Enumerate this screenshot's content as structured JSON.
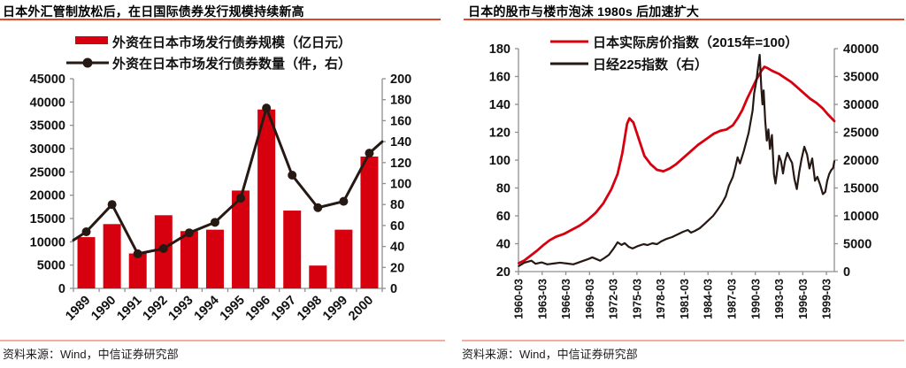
{
  "colors": {
    "red": "#d7000f",
    "dark": "#261812",
    "title_underline": "#e0452a",
    "separator": "#f2aca0",
    "axis": "#8f8f8f"
  },
  "source_label": "资料来源：Wind，中信证券研究部",
  "chart_data": [
    {
      "type": "bar",
      "title": "日本外汇管制放松后，在日国际债券发行规模持续新高",
      "source": "资料来源：Wind，中信证券研究部",
      "categories": [
        "1989",
        "1990",
        "1991",
        "1992",
        "1993",
        "1994",
        "1995",
        "1996",
        "1997",
        "1998",
        "1999",
        "2000"
      ],
      "series": [
        {
          "name": "外资在日本市场发行债券规模（亿日元）",
          "kind": "bar",
          "axis": "left",
          "color": "red",
          "values": [
            11000,
            13800,
            7500,
            15700,
            12300,
            12600,
            21000,
            38400,
            16700,
            4900,
            12600,
            28300
          ]
        },
        {
          "name": "外资在日本市场发行债券数量（件，右）",
          "kind": "line",
          "axis": "right",
          "color": "dark",
          "values": [
            54,
            80,
            33,
            38,
            53,
            63,
            86,
            172,
            108,
            77,
            83,
            129
          ],
          "edge_values": {
            "left": 46,
            "right": 140
          }
        }
      ],
      "axes": {
        "left": {
          "min": 0,
          "max": 45000,
          "step": 5000
        },
        "right": {
          "min": 0,
          "max": 200,
          "step": 20
        }
      },
      "legend_position": "top",
      "grid": false
    },
    {
      "type": "line",
      "title": "日本的股市与楼市泡沫 1980s 后加速扩大",
      "source": "资料来源：Wind，中信证券研究部",
      "x_axis": {
        "min": 1960.25,
        "max": 2000.25,
        "label_interval_years": 3,
        "tick_labels": [
          "1960-03",
          "1963-03",
          "1966-03",
          "1969-03",
          "1972-03",
          "1975-03",
          "1978-03",
          "1981-03",
          "1984-03",
          "1987-03",
          "1990-03",
          "1993-03",
          "1996-03",
          "1999-03"
        ]
      },
      "axes": {
        "left": {
          "min": 20,
          "max": 180,
          "step": 20
        },
        "right": {
          "min": 0,
          "max": 40000,
          "step": 5000
        }
      },
      "series": [
        {
          "name": "日本实际房价指数（2015年=100）",
          "axis": "left",
          "color": "red",
          "width": 2.8,
          "points": [
            [
              1960.3,
              26
            ],
            [
              1961,
              28
            ],
            [
              1961.8,
              31.5
            ],
            [
              1962.6,
              35
            ],
            [
              1963.4,
              39
            ],
            [
              1964.2,
              42.5
            ],
            [
              1965,
              45
            ],
            [
              1966,
              47
            ],
            [
              1967,
              50
            ],
            [
              1968,
              53
            ],
            [
              1969,
              57
            ],
            [
              1970,
              62
            ],
            [
              1971,
              69
            ],
            [
              1972,
              79
            ],
            [
              1972.8,
              90
            ],
            [
              1973.4,
              105
            ],
            [
              1974,
              126
            ],
            [
              1974.3,
              130
            ],
            [
              1974.8,
              127
            ],
            [
              1975.5,
              115
            ],
            [
              1976.2,
              103
            ],
            [
              1977,
              97
            ],
            [
              1977.8,
              93
            ],
            [
              1978.6,
              92
            ],
            [
              1979.4,
              94
            ],
            [
              1980.2,
              97
            ],
            [
              1981,
              101
            ],
            [
              1982,
              106
            ],
            [
              1983,
              111
            ],
            [
              1984,
              115
            ],
            [
              1985,
              119
            ],
            [
              1985.8,
              121
            ],
            [
              1986.6,
              122
            ],
            [
              1987.4,
              125
            ],
            [
              1988,
              130
            ],
            [
              1988.6,
              136
            ],
            [
              1989.2,
              144
            ],
            [
              1989.8,
              151
            ],
            [
              1990.4,
              158
            ],
            [
              1991,
              164
            ],
            [
              1991.4,
              167
            ],
            [
              1991.8,
              166
            ],
            [
              1992.4,
              164
            ],
            [
              1993.2,
              162
            ],
            [
              1994,
              159
            ],
            [
              1994.8,
              156
            ],
            [
              1995.6,
              152
            ],
            [
              1996.4,
              148
            ],
            [
              1997.2,
              144
            ],
            [
              1998,
              141
            ],
            [
              1998.8,
              137
            ],
            [
              1999.4,
              133
            ],
            [
              2000.25,
              128
            ]
          ]
        },
        {
          "name": "日经225指数（右）",
          "axis": "right",
          "color": "dark",
          "width": 2.2,
          "points": [
            [
              1960.3,
              1000
            ],
            [
              1961,
              1600
            ],
            [
              1961.9,
              1950
            ],
            [
              1962.4,
              1400
            ],
            [
              1963.2,
              1650
            ],
            [
              1963.9,
              1300
            ],
            [
              1964.7,
              1450
            ],
            [
              1965.5,
              1600
            ],
            [
              1966.4,
              1450
            ],
            [
              1967.2,
              1300
            ],
            [
              1967.8,
              1600
            ],
            [
              1968.5,
              1950
            ],
            [
              1969.1,
              2250
            ],
            [
              1969.6,
              2550
            ],
            [
              1970.1,
              2250
            ],
            [
              1970.6,
              1950
            ],
            [
              1971.1,
              2400
            ],
            [
              1971.7,
              3000
            ],
            [
              1972.3,
              4150
            ],
            [
              1972.8,
              5250
            ],
            [
              1973.3,
              4780
            ],
            [
              1973.7,
              5100
            ],
            [
              1974.2,
              4450
            ],
            [
              1974.7,
              4150
            ],
            [
              1975.4,
              4600
            ],
            [
              1976.1,
              4920
            ],
            [
              1976.6,
              4760
            ],
            [
              1977.2,
              5080
            ],
            [
              1977.8,
              4920
            ],
            [
              1978.3,
              5400
            ],
            [
              1979,
              5870
            ],
            [
              1979.7,
              6190
            ],
            [
              1980.4,
              6670
            ],
            [
              1981.1,
              7140
            ],
            [
              1981.7,
              7460
            ],
            [
              1982.1,
              6980
            ],
            [
              1982.6,
              7300
            ],
            [
              1983.2,
              7780
            ],
            [
              1983.7,
              8400
            ],
            [
              1984.3,
              9200
            ],
            [
              1984.9,
              10000
            ],
            [
              1985.4,
              10950
            ],
            [
              1986,
              12200
            ],
            [
              1986.5,
              13500
            ],
            [
              1986.9,
              15400
            ],
            [
              1987.4,
              17000
            ],
            [
              1987.7,
              18600
            ],
            [
              1988,
              20500
            ],
            [
              1988.3,
              19400
            ],
            [
              1988.8,
              21700
            ],
            [
              1989.1,
              23300
            ],
            [
              1989.4,
              24900
            ],
            [
              1989.6,
              26500
            ],
            [
              1989.9,
              28900
            ],
            [
              1990.1,
              32000
            ],
            [
              1990.4,
              34400
            ],
            [
              1990.6,
              36800
            ],
            [
              1990.8,
              38900
            ],
            [
              1991,
              33000
            ],
            [
              1991.15,
              30000
            ],
            [
              1991.3,
              32500
            ],
            [
              1991.5,
              27000
            ],
            [
              1991.7,
              23500
            ],
            [
              1991.9,
              25500
            ],
            [
              1992.1,
              22000
            ],
            [
              1992.35,
              24500
            ],
            [
              1992.6,
              17500
            ],
            [
              1992.8,
              15800
            ],
            [
              1993,
              18000
            ],
            [
              1993.25,
              20800
            ],
            [
              1993.5,
              19800
            ],
            [
              1993.75,
              17600
            ],
            [
              1994,
              19800
            ],
            [
              1994.3,
              21300
            ],
            [
              1994.6,
              20300
            ],
            [
              1994.9,
              19500
            ],
            [
              1995.2,
              16600
            ],
            [
              1995.5,
              14800
            ],
            [
              1995.8,
              17800
            ],
            [
              1996.1,
              20200
            ],
            [
              1996.45,
              22400
            ],
            [
              1996.8,
              21000
            ],
            [
              1997.1,
              18500
            ],
            [
              1997.45,
              20300
            ],
            [
              1997.8,
              16300
            ],
            [
              1998.1,
              17000
            ],
            [
              1998.45,
              15600
            ],
            [
              1998.8,
              13900
            ],
            [
              1999.1,
              14300
            ],
            [
              1999.35,
              16300
            ],
            [
              1999.6,
              17500
            ],
            [
              1999.85,
              18200
            ],
            [
              2000.1,
              18600
            ],
            [
              2000.25,
              19800
            ]
          ]
        }
      ],
      "legend_position": "top",
      "grid": false
    }
  ]
}
